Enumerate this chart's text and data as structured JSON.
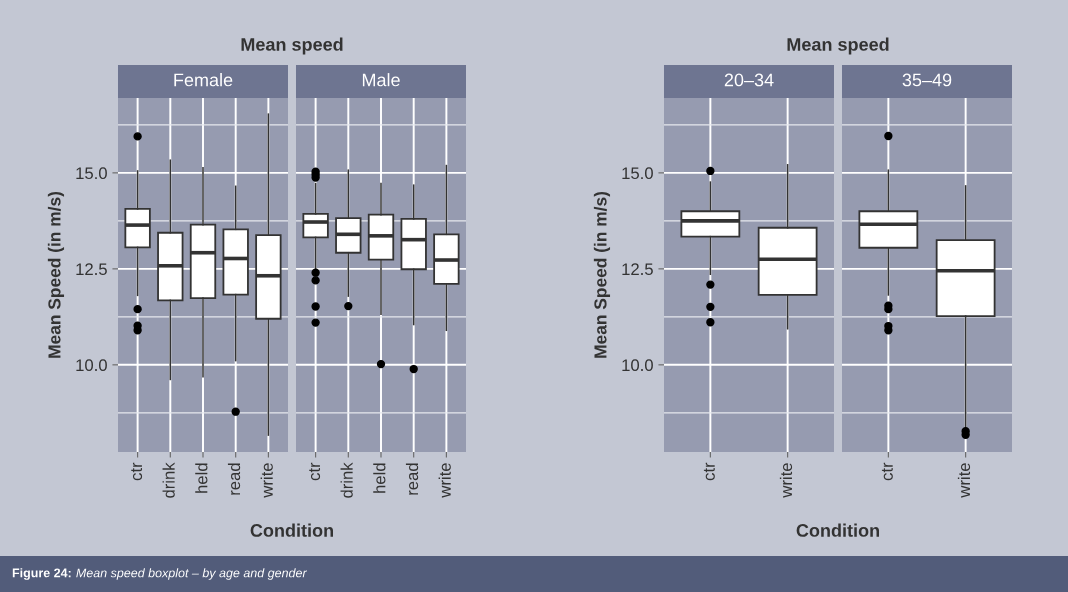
{
  "chart_data": [
    {
      "type": "box",
      "title": "Mean speed",
      "subtitle": "Female",
      "xlabel": "Condition",
      "ylabel": "Mean Speed (in m/s)",
      "categories": [
        "ctr",
        "drink",
        "held",
        "read",
        "write"
      ],
      "ylim": [
        7.73,
        16.95
      ],
      "yticks": [
        {
          "value": 10,
          "label": "10.0"
        },
        {
          "value": 12.5,
          "label": "12.5"
        },
        {
          "value": 15,
          "label": "15.0"
        }
      ],
      "grid": true,
      "annotations": [
        "Figure 24:",
        "Mean speed boxplot – by age and gender"
      ],
      "boxes": [
        {
          "low": 11.81,
          "q1": 13.06,
          "median": 13.64,
          "q3": 14.06,
          "high": 15.05,
          "outliers": [
            15.95,
            11.45,
            11.02,
            10.9
          ]
        },
        {
          "low": 9.62,
          "q1": 11.68,
          "median": 12.58,
          "q3": 13.44,
          "high": 15.33
        },
        {
          "low": 9.69,
          "q1": 11.74,
          "median": 12.92,
          "q3": 13.65,
          "high": 15.13
        },
        {
          "low": 10.11,
          "q1": 11.83,
          "median": 12.77,
          "q3": 13.53,
          "high": 14.65,
          "outliers": [
            8.78
          ]
        },
        {
          "low": 8.17,
          "q1": 11.2,
          "median": 12.32,
          "q3": 13.38,
          "high": 16.53
        }
      ]
    },
    {
      "type": "box",
      "subtitle": "Male",
      "categories": [
        "ctr",
        "drink",
        "held",
        "read",
        "write"
      ],
      "ylim": [
        7.73,
        16.95
      ],
      "yticks": [
        {
          "value": 10,
          "label": null
        },
        {
          "value": 12.5,
          "label": null
        },
        {
          "value": 15,
          "label": null
        }
      ],
      "grid": true,
      "tick_labels": "x",
      "boxes": [
        {
          "low": 12.48,
          "q1": 13.32,
          "median": 13.72,
          "q3": 13.93,
          "high": 14.72,
          "outliers": [
            15.03,
            14.96,
            14.88,
            12.4,
            12.2,
            11.52,
            11.1
          ]
        },
        {
          "low": 11.79,
          "q1": 12.92,
          "median": 13.4,
          "q3": 13.82,
          "high": 15.07,
          "outliers": [
            11.53
          ]
        },
        {
          "low": 11.32,
          "q1": 12.74,
          "median": 13.36,
          "q3": 13.91,
          "high": 14.72,
          "outliers": [
            10.02
          ]
        },
        {
          "low": 11.05,
          "q1": 12.49,
          "median": 13.26,
          "q3": 13.8,
          "high": 14.68,
          "outliers": [
            9.89
          ]
        },
        {
          "low": 10.9,
          "q1": 12.11,
          "median": 12.73,
          "q3": 13.4,
          "high": 15.19
        }
      ]
    },
    {
      "type": "box",
      "title": "Mean speed",
      "subtitle": "20–34",
      "xlabel": "Condition",
      "ylabel": "Mean Speed (in m/s)",
      "categories": [
        "ctr",
        "write"
      ],
      "ylim": [
        7.73,
        16.95
      ],
      "yticks": [
        {
          "value": 10,
          "label": "10.0"
        },
        {
          "value": 12.5,
          "label": "12.5"
        },
        {
          "value": 15,
          "label": "15.0"
        }
      ],
      "grid": true,
      "boxes": [
        {
          "low": 12.36,
          "q1": 13.34,
          "median": 13.75,
          "q3": 14.0,
          "high": 14.76,
          "outliers": [
            15.05,
            12.09,
            11.51,
            11.11
          ]
        },
        {
          "low": 10.94,
          "q1": 11.82,
          "median": 12.75,
          "q3": 13.57,
          "high": 15.21
        }
      ]
    },
    {
      "type": "box",
      "subtitle": "35–49",
      "categories": [
        "ctr",
        "write"
      ],
      "ylim": [
        7.73,
        16.95
      ],
      "yticks": [
        {
          "value": 10,
          "label": null
        },
        {
          "value": 12.5,
          "label": null
        },
        {
          "value": 15,
          "label": null
        }
      ],
      "grid": true,
      "tick_labels": "x",
      "boxes": [
        {
          "low": 11.82,
          "q1": 13.05,
          "median": 13.66,
          "q3": 14.0,
          "high": 15.07,
          "outliers": [
            15.96,
            11.54,
            11.45,
            11.01,
            10.9
          ]
        },
        {
          "low": 8.35,
          "q1": 11.27,
          "median": 12.45,
          "q3": 13.25,
          "high": 14.66,
          "outliers": [
            8.27,
            8.18
          ]
        }
      ]
    }
  ]
}
